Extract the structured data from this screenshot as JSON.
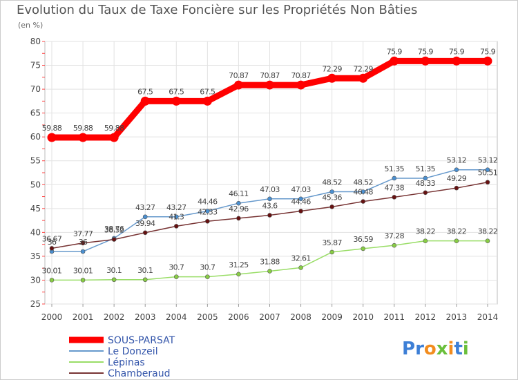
{
  "chart_data": {
    "type": "line",
    "title": "Evolution du Taux de Taxe Foncière sur les Propriétés Non Bâties",
    "ylabel": "(en %)",
    "xlabel": "",
    "x": [
      "2000",
      "2001",
      "2002",
      "2003",
      "2004",
      "2005",
      "2006",
      "2007",
      "2008",
      "2009",
      "2010",
      "2011",
      "2012",
      "2013",
      "2014"
    ],
    "ylim": [
      25,
      80
    ],
    "yticks": [
      25,
      30,
      35,
      40,
      45,
      50,
      55,
      60,
      65,
      70,
      75,
      80
    ],
    "grid": true,
    "legend_position": "bottom-left",
    "series": [
      {
        "name": "SOUS-PARSAT",
        "color": "#ff0000",
        "dot": "#ff0000",
        "values": [
          59.88,
          59.88,
          59.88,
          67.5,
          67.5,
          67.5,
          70.87,
          70.87,
          70.87,
          72.29,
          72.29,
          75.9,
          75.9,
          75.9,
          75.9
        ],
        "labels": [
          "59.88",
          "59.88",
          "59.88",
          "67.5",
          "67.5",
          "67.5",
          "70.87",
          "70.87",
          "70.87",
          "72.29",
          "72.29",
          "75.9",
          "75.9",
          "75.9",
          "75.9"
        ]
      },
      {
        "name": "Le Donzeil",
        "color": "#6699cc",
        "dot": "#4a8fd0",
        "values": [
          36,
          36,
          38.76,
          43.27,
          43.27,
          44.46,
          46.11,
          47.03,
          47.03,
          48.52,
          48.52,
          51.35,
          51.35,
          53.12,
          53.12
        ],
        "labels": [
          "36",
          "36",
          "38.76",
          "43.27",
          "43.27",
          "44.46",
          "46.11",
          "47.03",
          "47.03",
          "48.52",
          "48.52",
          "51.35",
          "51.35",
          "53.12",
          "53.12"
        ]
      },
      {
        "name": "Lépinas",
        "color": "#99dd66",
        "dot": "#88cc44",
        "values": [
          30.01,
          30.01,
          30.1,
          30.1,
          30.7,
          30.7,
          31.25,
          31.88,
          32.61,
          35.87,
          36.59,
          37.28,
          38.22,
          38.22,
          38.22
        ],
        "labels": [
          "30.01",
          "30.01",
          "30.1",
          "30.1",
          "30.7",
          "30.7",
          "31.25",
          "31.88",
          "32.61",
          "35.87",
          "36.59",
          "37.28",
          "38.22",
          "38.22",
          "38.22"
        ]
      },
      {
        "name": "Chamberaud",
        "color": "#773333",
        "dot": "#661111",
        "values": [
          36.67,
          37.77,
          38.52,
          39.94,
          41.3,
          42.33,
          42.96,
          43.6,
          44.46,
          45.36,
          46.48,
          47.38,
          48.33,
          49.29,
          50.51
        ],
        "labels": [
          "36.67",
          "37.77",
          "38.52",
          "39.94",
          "41.3",
          "42.33",
          "42.96",
          "43.6",
          "44.46",
          "45.36",
          "46.48",
          "47.38",
          "48.33",
          "49.29",
          "50.51"
        ]
      }
    ]
  },
  "logo": {
    "text": "Proxiti",
    "letters": [
      "P",
      "r",
      "o",
      "x",
      "i",
      "t",
      "i"
    ],
    "colors": [
      "#3d7fd6",
      "#3d7fd6",
      "#f28c1e",
      "#6abf3b",
      "#f28c1e",
      "#3d7fd6",
      "#6abf3b"
    ]
  }
}
